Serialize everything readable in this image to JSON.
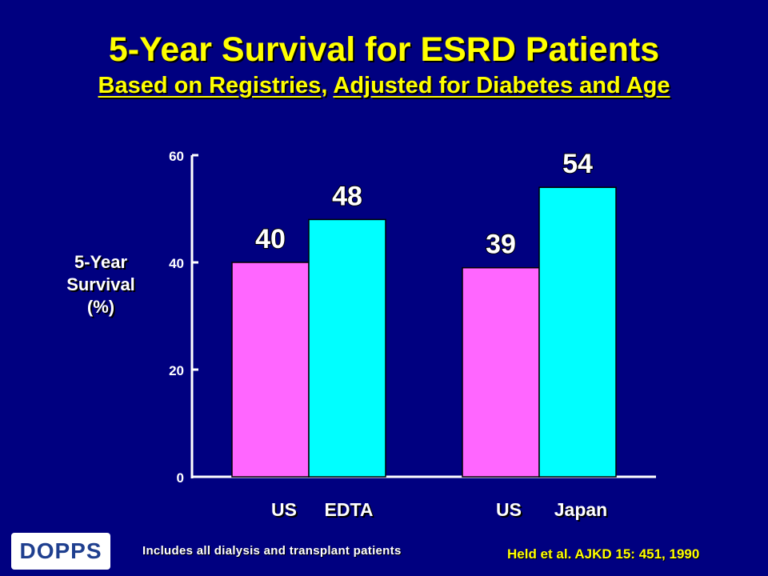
{
  "header": {
    "title": "5-Year Survival for ESRD Patients",
    "subtitle_part1": "Based on Registries",
    "subtitle_sep": ", ",
    "subtitle_part2": "Adjusted for Diabetes and Age"
  },
  "footer": {
    "logo_text": "DOPPS",
    "note": "Includes all dialysis and transplant patients",
    "citation": "Held et al. AJKD 15: 451, 1990"
  },
  "colors": {
    "background": "#000080",
    "title": "#ffff00",
    "us_bar": "#ff66ff",
    "comparison_bar": "#00ffff"
  },
  "chart_data": {
    "type": "bar",
    "title": "5-Year Survival for ESRD Patients",
    "ylabel_lines": [
      "5-Year",
      "Survival",
      "(%)"
    ],
    "ylim": [
      0,
      60
    ],
    "yticks": [
      "0",
      "20",
      "40",
      "60"
    ],
    "grid": false,
    "groups": [
      {
        "bars": [
          {
            "label": "US",
            "value": 40,
            "color": "#ff66ff"
          },
          {
            "label": "EDTA",
            "value": 48,
            "color": "#00ffff"
          }
        ]
      },
      {
        "bars": [
          {
            "label": "US",
            "value": 39,
            "color": "#ff66ff"
          },
          {
            "label": "Japan",
            "value": 54,
            "color": "#00ffff"
          }
        ]
      }
    ]
  }
}
